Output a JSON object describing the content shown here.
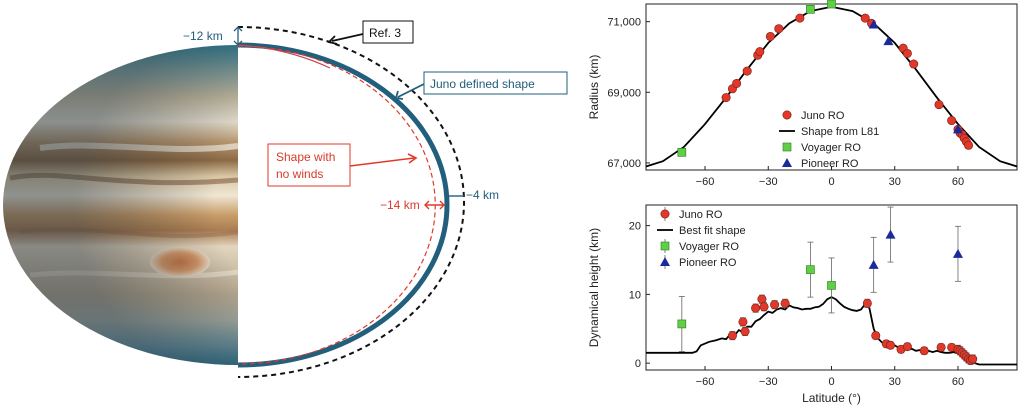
{
  "left_panel": {
    "labels": {
      "ref": "Ref. 3",
      "juno_shape": "Juno defined shape",
      "no_winds_1": "Shape with",
      "no_winds_2": "no winds",
      "minus12": "−12 km",
      "minus14": "−14 km",
      "minus4": "−4 km"
    },
    "colors": {
      "juno_shape": "#215f7c",
      "no_winds": "#e0392a",
      "ref": "#111111"
    }
  },
  "chart_data": [
    {
      "type": "scatter",
      "ylabel": "Radius (km)",
      "xlim": [
        -88,
        88
      ],
      "ylim": [
        66800,
        71500
      ],
      "xticks": [
        -60,
        -30,
        0,
        30,
        60
      ],
      "yticks": [
        67000,
        69000,
        71000
      ],
      "ytick_labels": [
        "67,000",
        "69,000",
        "71,000"
      ],
      "legend": {
        "position": "center",
        "entries": [
          "Juno RO",
          "Shape from L81",
          "Voyager RO",
          "Pioneer RO"
        ]
      },
      "series": [
        {
          "name": "Juno RO",
          "marker": "circle",
          "color": "#e0392a",
          "x": [
            -50,
            -47,
            -45,
            -40,
            -35,
            -34,
            -29,
            -25,
            -15,
            16,
            19,
            34,
            36,
            39,
            51,
            57,
            60,
            61,
            62,
            63,
            64,
            65
          ],
          "y": [
            68850,
            69100,
            69250,
            69600,
            70050,
            70150,
            70580,
            70800,
            71100,
            71100,
            70950,
            70250,
            70100,
            69800,
            68650,
            68200,
            67950,
            67850,
            67800,
            67700,
            67600,
            67500
          ]
        },
        {
          "name": "Voyager RO",
          "marker": "square",
          "color": "#5fcf45",
          "x": [
            -71,
            -10,
            0
          ],
          "y": [
            67300,
            71350,
            71500
          ]
        },
        {
          "name": "Pioneer RO",
          "marker": "triangle",
          "color": "#1a2a9a",
          "x": [
            20,
            27,
            60
          ],
          "y": [
            70920,
            70450,
            67950
          ]
        },
        {
          "name": "Shape from L81",
          "line": true,
          "color": "#000000",
          "x": [
            -88,
            -80,
            -70,
            -60,
            -50,
            -40,
            -30,
            -20,
            -10,
            0,
            10,
            20,
            30,
            40,
            50,
            60,
            70,
            80,
            88
          ],
          "y": [
            66900,
            67050,
            67450,
            68100,
            68850,
            69650,
            70400,
            70950,
            71300,
            71420,
            71300,
            70950,
            70400,
            69650,
            68850,
            68100,
            67450,
            67050,
            66900
          ]
        }
      ]
    },
    {
      "type": "scatter",
      "xlabel": "Latitude (°)",
      "ylabel": "Dynamical height (km)",
      "xlim": [
        -88,
        88
      ],
      "ylim": [
        -1,
        23
      ],
      "xticks": [
        -60,
        -30,
        0,
        30,
        60
      ],
      "yticks": [
        0,
        10,
        20
      ],
      "legend": {
        "position": "top-left",
        "entries": [
          "Juno RO",
          "Best fit shape",
          "Voyager RO",
          "Pioneer RO"
        ]
      },
      "series": [
        {
          "name": "Juno RO",
          "marker": "circle",
          "color": "#e0392a",
          "x": [
            -47,
            -42,
            -41,
            -36,
            -33,
            -32,
            -27,
            -22,
            17,
            21,
            26,
            28,
            33,
            36,
            44,
            52,
            57,
            60,
            61,
            62,
            63,
            64,
            65,
            66,
            67
          ],
          "y": [
            4.0,
            6.0,
            4.6,
            8.0,
            9.3,
            8.2,
            8.5,
            8.7,
            8.7,
            4.0,
            2.8,
            2.6,
            2.0,
            2.4,
            1.8,
            2.3,
            2.3,
            2.0,
            1.8,
            1.5,
            1.2,
            0.9,
            0.6,
            0.4,
            0.6
          ],
          "err": [
            0.6,
            0.6,
            0.6,
            0.6,
            0.6,
            0.6,
            0.6,
            0.6,
            0.6,
            0.5,
            0.5,
            0.5,
            0.5,
            0.5,
            0.5,
            0.5,
            0.5,
            0.6,
            0.6,
            0.6,
            0.6,
            0.6,
            0.6,
            0.6,
            0.6
          ]
        },
        {
          "name": "Voyager RO",
          "marker": "square",
          "color": "#5fcf45",
          "x": [
            -71,
            -10,
            0
          ],
          "y": [
            5.7,
            13.6,
            11.3
          ],
          "err": [
            4.0,
            4.0,
            4.0
          ]
        },
        {
          "name": "Pioneer RO",
          "marker": "triangle",
          "color": "#1a2a9a",
          "x": [
            20,
            28,
            60
          ],
          "y": [
            14.3,
            18.7,
            15.9
          ],
          "err": [
            4.0,
            4.0,
            4.0
          ]
        },
        {
          "name": "Best fit shape",
          "line": true,
          "color": "#000000",
          "x": [
            -88,
            -66,
            -64,
            -62,
            -58,
            -55,
            -52,
            -50,
            -48,
            -46,
            -44,
            -42,
            -40,
            -38,
            -36,
            -34,
            -32,
            -30,
            -28,
            -26,
            -24,
            -22,
            -20,
            -18,
            -16,
            -14,
            -12,
            -10,
            -8,
            -6,
            -4,
            -2,
            0,
            2,
            4,
            6,
            8,
            10,
            12,
            14,
            16,
            18,
            20,
            22,
            24,
            26,
            28,
            30,
            32,
            34,
            36,
            38,
            40,
            42,
            44,
            46,
            48,
            50,
            52,
            54,
            56,
            58,
            60,
            62,
            64,
            66,
            68,
            70,
            88
          ],
          "y": [
            1.5,
            1.5,
            1.7,
            2.6,
            3.1,
            3.3,
            3.6,
            3.5,
            4.2,
            4.0,
            4.8,
            4.5,
            5.3,
            5.3,
            6.1,
            6.4,
            7.0,
            7.5,
            7.3,
            7.8,
            8.0,
            7.8,
            8.4,
            8.1,
            8.0,
            7.8,
            7.9,
            7.9,
            8.1,
            8.2,
            8.6,
            9.3,
            9.6,
            9.3,
            8.7,
            8.2,
            7.9,
            7.7,
            7.6,
            7.8,
            8.6,
            8.0,
            5.0,
            3.6,
            3.0,
            3.0,
            2.4,
            2.6,
            2.2,
            2.4,
            1.9,
            2.1,
            1.8,
            1.9,
            1.6,
            1.8,
            1.6,
            1.8,
            1.6,
            1.5,
            1.5,
            1.6,
            1.4,
            1.1,
            0.6,
            0.2,
            0.0,
            -0.2,
            -0.2
          ]
        }
      ]
    }
  ]
}
